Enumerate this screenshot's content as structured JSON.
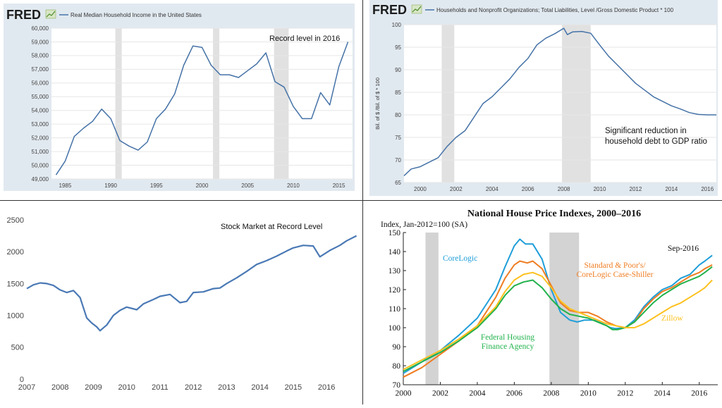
{
  "colors": {
    "fred_bg": "#e1e9f0",
    "fred_line": "#4572a7",
    "recession": "#e1e1e1",
    "stock_line": "#4a79b5",
    "divider": "#333333",
    "hp_recession": "#d3d3d3"
  },
  "panels": {
    "income": {
      "logo": "FRED",
      "legend": "Real Median Household Income in the United States",
      "annotation": "Record level in 2016"
    },
    "debt": {
      "logo": "FRED",
      "legend": "Households and Nonprofit Organizations; Total Liabilities, Level /Gross Domestic Product * 100",
      "annotation_line1": "Significant reduction in",
      "annotation_line2": "household debt to GDP ratio"
    },
    "stock": {
      "annotation": "Stock Market at Record Level"
    },
    "house": {
      "title": "National House Price Indexes, 2000–2016",
      "subtitle": "Index, Jan-2012=100 (SA)",
      "labels": {
        "corelogic": "CoreLogic",
        "sp_line1": "Standard & Poor's/",
        "sp_line2": "CoreLogic Case-Shiller",
        "fhfa_line1": "Federal Housing",
        "fhfa_line2": "Finance Agency",
        "zillow": "Zillow",
        "date": "Sep-2016"
      }
    }
  },
  "chart_data": [
    {
      "type": "line",
      "title": "Real Median Household Income in the United States",
      "xlim": [
        1983.5,
        2016.5
      ],
      "ylim": [
        49000,
        60000
      ],
      "x_ticks": [
        1985,
        1990,
        1995,
        2000,
        2005,
        2010,
        2015
      ],
      "x_tick_labels": [
        "1985",
        "1990",
        "1995",
        "2000",
        "2005",
        "2010",
        "2015"
      ],
      "y_ticks": [
        49000,
        50000,
        51000,
        52000,
        53000,
        54000,
        55000,
        56000,
        57000,
        58000,
        59000,
        60000
      ],
      "y_tick_labels": [
        "49,000",
        "50,000",
        "51,000",
        "52,000",
        "53,000",
        "54,000",
        "55,000",
        "56,000",
        "57,000",
        "58,000",
        "59,000",
        "60,000"
      ],
      "grid": true,
      "recessions": [
        [
          1990.5,
          1991.2
        ],
        [
          2001.2,
          2001.9
        ],
        [
          2007.9,
          2009.5
        ]
      ],
      "x": [
        1984,
        1985,
        1986,
        1987,
        1988,
        1989,
        1990,
        1991,
        1992,
        1993,
        1994,
        1995,
        1996,
        1997,
        1998,
        1999,
        2000,
        2001,
        2002,
        2003,
        2004,
        2005,
        2006,
        2007,
        2008,
        2009,
        2010,
        2011,
        2012,
        2013,
        2014,
        2015,
        2016
      ],
      "series": [
        {
          "values": [
            49300,
            50300,
            52100,
            52700,
            53200,
            54100,
            53400,
            51800,
            51400,
            51100,
            51700,
            53400,
            54100,
            55200,
            57300,
            58700,
            58600,
            57300,
            56600,
            56600,
            56400,
            56900,
            57400,
            58200,
            56100,
            55700,
            54300,
            53400,
            53400,
            55300,
            54400,
            57200,
            59000
          ]
        }
      ]
    },
    {
      "type": "line",
      "title": "Households and Nonprofit Organizations; Total Liabilities, Level /Gross Domestic Product * 100",
      "ylabel": "Bil. of $ /Bil. of $ * 100",
      "xlim": [
        1999.1,
        2016.5
      ],
      "ylim": [
        65,
        100
      ],
      "x_ticks": [
        2000,
        2002,
        2004,
        2006,
        2008,
        2010,
        2012,
        2014,
        2016
      ],
      "x_tick_labels": [
        "2000",
        "2002",
        "2004",
        "2006",
        "2008",
        "2010",
        "2012",
        "2014",
        "2016"
      ],
      "y_ticks": [
        65,
        70,
        75,
        80,
        85,
        90,
        95,
        100
      ],
      "y_tick_labels": [
        "65",
        "70",
        "75",
        "80",
        "85",
        "90",
        "95",
        "100"
      ],
      "grid": true,
      "recessions": [
        [
          2001.2,
          2001.9
        ],
        [
          2007.9,
          2009.5
        ]
      ],
      "x": [
        1999.1,
        1999.5,
        2000,
        2000.5,
        2001,
        2001.5,
        2002,
        2002.5,
        2003,
        2003.5,
        2004,
        2004.5,
        2005,
        2005.5,
        2006,
        2006.5,
        2007,
        2007.5,
        2008,
        2008.2,
        2008.5,
        2009,
        2009.5,
        2010,
        2010.5,
        2011,
        2011.5,
        2012,
        2012.5,
        2013,
        2013.5,
        2014,
        2014.5,
        2015,
        2015.5,
        2016,
        2016.5
      ],
      "series": [
        {
          "values": [
            66.5,
            68,
            68.5,
            69.5,
            70.5,
            73,
            75,
            76.5,
            79.5,
            82.5,
            84,
            86,
            88,
            90.5,
            92.5,
            95.5,
            97,
            98,
            99.2,
            97.8,
            98.4,
            98.5,
            98.1,
            95.5,
            93,
            91,
            89,
            87,
            85.5,
            84,
            83,
            82,
            81.3,
            80.5,
            80.1,
            80,
            80
          ]
        }
      ]
    },
    {
      "type": "line",
      "xlim": [
        2007,
        2016.95
      ],
      "ylim": [
        0,
        2500
      ],
      "x_ticks": [
        2007,
        2008,
        2009,
        2010,
        2011,
        2012,
        2013,
        2014,
        2015,
        2016
      ],
      "x_tick_labels": [
        "2007",
        "2008",
        "2009",
        "2010",
        "2011",
        "2012",
        "2013",
        "2014",
        "2015",
        "2016"
      ],
      "y_ticks": [
        0,
        500,
        1000,
        1500,
        2000,
        2500
      ],
      "y_tick_labels": [
        "0",
        "500",
        "1000",
        "1500",
        "2000",
        "2500"
      ],
      "grid": false,
      "x": [
        2007,
        2007.2,
        2007.4,
        2007.6,
        2007.8,
        2008,
        2008.2,
        2008.4,
        2008.6,
        2008.8,
        2008.95,
        2009.1,
        2009.2,
        2009.4,
        2009.6,
        2009.8,
        2010,
        2010.3,
        2010.5,
        2010.8,
        2011,
        2011.3,
        2011.6,
        2011.8,
        2012,
        2012.3,
        2012.6,
        2012.8,
        2013,
        2013.3,
        2013.6,
        2013.9,
        2014.2,
        2014.5,
        2014.8,
        2015,
        2015.3,
        2015.6,
        2015.8,
        2016.1,
        2016.4,
        2016.6,
        2016.9
      ],
      "series": [
        {
          "values": [
            1420,
            1480,
            1510,
            1500,
            1470,
            1400,
            1360,
            1390,
            1280,
            960,
            880,
            820,
            760,
            850,
            1000,
            1080,
            1130,
            1090,
            1180,
            1250,
            1300,
            1330,
            1200,
            1220,
            1360,
            1370,
            1420,
            1430,
            1500,
            1590,
            1690,
            1800,
            1860,
            1930,
            2010,
            2060,
            2100,
            2090,
            1920,
            2020,
            2100,
            2170,
            2250
          ]
        }
      ]
    },
    {
      "type": "line",
      "title": "National House Price Indexes, 2000–2016",
      "subtitle": "Index, Jan-2012=100 (SA)",
      "xlim": [
        2000,
        2017
      ],
      "ylim": [
        70,
        150
      ],
      "x_ticks": [
        2000,
        2002,
        2004,
        2006,
        2008,
        2010,
        2012,
        2014,
        2016
      ],
      "x_tick_labels": [
        "2000",
        "2002",
        "2004",
        "2006",
        "2008",
        "2010",
        "2012",
        "2014",
        "2016"
      ],
      "y_ticks": [
        70,
        80,
        90,
        100,
        110,
        120,
        130,
        140,
        150
      ],
      "y_tick_labels": [
        "70",
        "80",
        "90",
        "100",
        "110",
        "120",
        "130",
        "140",
        "150"
      ],
      "grid": false,
      "recessions": [
        [
          2001.2,
          2001.9
        ],
        [
          2007.9,
          2009.5
        ]
      ],
      "series": [
        {
          "name": "CoreLogic",
          "color": "#1f9ed9",
          "x": [
            2000,
            2001,
            2002,
            2003,
            2004,
            2005,
            2005.5,
            2006,
            2006.3,
            2006.6,
            2007,
            2007.5,
            2008,
            2008.5,
            2009,
            2009.4,
            2009.8,
            2010.3,
            2010.8,
            2011.2,
            2011.5,
            2012,
            2012.5,
            2013,
            2013.5,
            2014,
            2014.5,
            2015,
            2015.5,
            2016,
            2016.3,
            2016.7
          ],
          "values": [
            76,
            82,
            88,
            96,
            105,
            120,
            132,
            143,
            146.5,
            144,
            144,
            136,
            120,
            108,
            104,
            103,
            104,
            104,
            102,
            100,
            99.5,
            100,
            104,
            111,
            116,
            120,
            122,
            126,
            128,
            133,
            135,
            138
          ]
        },
        {
          "name": "Standard & Poor's/CoreLogic Case-Shiller",
          "color": "#ef7d22",
          "x": [
            2000,
            2001,
            2002,
            2003,
            2004,
            2005,
            2005.5,
            2006,
            2006.3,
            2006.7,
            2007,
            2007.5,
            2008,
            2008.5,
            2009,
            2009.5,
            2010,
            2010.5,
            2011,
            2011.5,
            2012,
            2012.5,
            2013,
            2013.5,
            2014,
            2014.5,
            2015,
            2015.5,
            2016,
            2016.3,
            2016.7
          ],
          "values": [
            74,
            79,
            86,
            93,
            101,
            116,
            126,
            133,
            135,
            134,
            135,
            131,
            122,
            113,
            109,
            108,
            108,
            106,
            103,
            101,
            100,
            103,
            110,
            115,
            119,
            121,
            124,
            127,
            129,
            131,
            133
          ]
        },
        {
          "name": "Federal Housing Finance Agency",
          "color": "#22b24c",
          "x": [
            2000,
            2001,
            2002,
            2003,
            2004,
            2005,
            2005.5,
            2006,
            2006.5,
            2007,
            2007.5,
            2008,
            2008.5,
            2009,
            2009.5,
            2010,
            2010.5,
            2011,
            2011.3,
            2011.6,
            2012,
            2012.5,
            2013,
            2013.5,
            2014,
            2014.5,
            2015,
            2015.5,
            2016,
            2016.3,
            2016.7
          ],
          "values": [
            77,
            82,
            87,
            93,
            100,
            110,
            117,
            122,
            124,
            125,
            121,
            115,
            110,
            107,
            106,
            105,
            103,
            101,
            99,
            99,
            100,
            103,
            108,
            113,
            117,
            120,
            123,
            125,
            127,
            129,
            132
          ]
        },
        {
          "name": "Zillow",
          "color": "#fdc11f",
          "x": [
            2000,
            2001,
            2002,
            2003,
            2004,
            2005,
            2005.5,
            2006,
            2006.5,
            2007,
            2007.5,
            2008,
            2008.5,
            2009,
            2009.5,
            2010,
            2010.5,
            2011,
            2011.5,
            2012,
            2012.5,
            2013,
            2013.5,
            2014,
            2014.5,
            2015,
            2015.5,
            2016,
            2016.3,
            2016.7
          ],
          "values": [
            78,
            83,
            88,
            94,
            101,
            111,
            119,
            125,
            128,
            129,
            127,
            121,
            114,
            110,
            108,
            106,
            104,
            102,
            101,
            100,
            100,
            102,
            105,
            108,
            111,
            113,
            116,
            119,
            121,
            125
          ]
        }
      ]
    }
  ]
}
